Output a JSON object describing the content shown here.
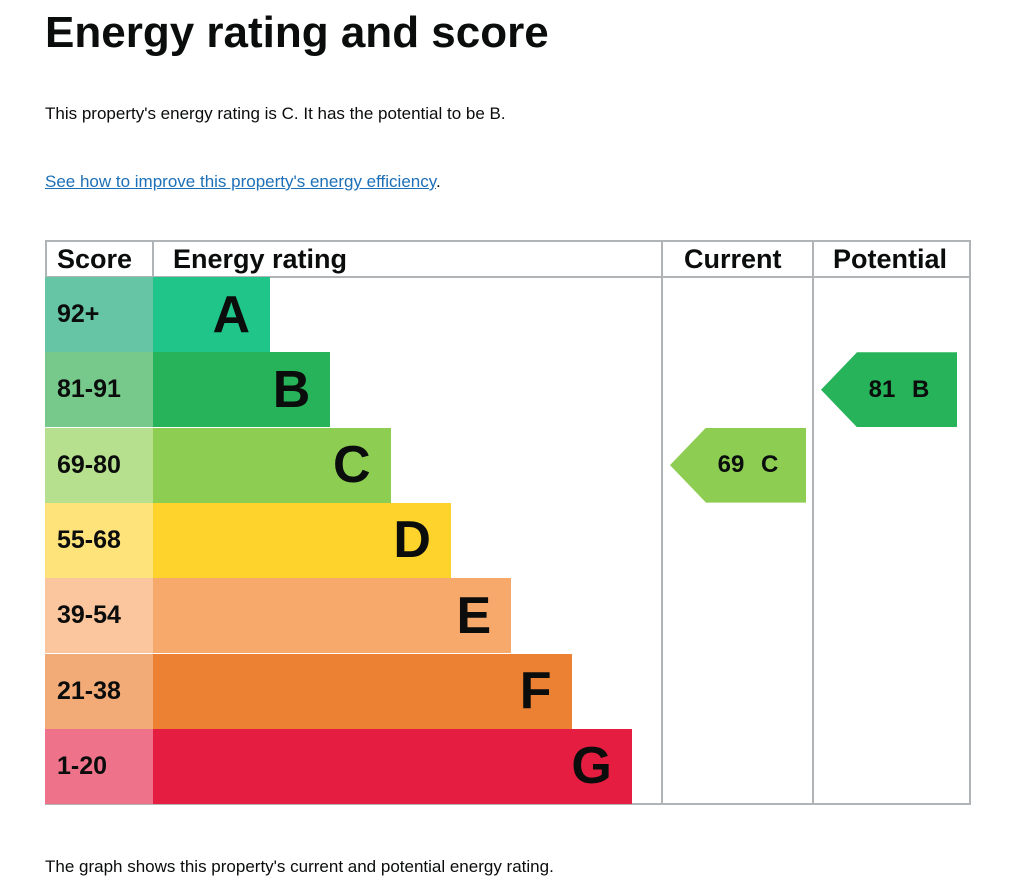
{
  "title": "Energy rating and score",
  "summary": "This property's energy rating is C. It has the potential to be B.",
  "link": {
    "text": "See how to improve this property's energy efficiency",
    "suffix": "."
  },
  "footer": "The graph shows this property's current and potential energy rating.",
  "table": {
    "headers": {
      "score": "Score",
      "rating": "Energy rating",
      "current": "Current",
      "potential": "Potential"
    },
    "bands": [
      {
        "score": "92+",
        "letter": "A",
        "color": "#1fc589",
        "score_color": "#66c5a5"
      },
      {
        "score": "81-91",
        "letter": "B",
        "color": "#27b35a",
        "score_color": "#76c98b"
      },
      {
        "score": "69-80",
        "letter": "C",
        "color": "#8ccd52",
        "score_color": "#b7e08e"
      },
      {
        "score": "55-68",
        "letter": "D",
        "color": "#fed32c",
        "score_color": "#fee27a"
      },
      {
        "score": "39-54",
        "letter": "E",
        "color": "#f7a86b",
        "score_color": "#fbc69d"
      },
      {
        "score": "21-38",
        "letter": "F",
        "color": "#ed8133",
        "score_color": "#f2ab77"
      },
      {
        "score": "1-20",
        "letter": "G",
        "color": "#e51d41",
        "score_color": "#ee7289"
      }
    ],
    "current": {
      "label": "69 C",
      "score": 69,
      "band": "C",
      "color": "#8ccd52"
    },
    "potential": {
      "label": "81 B",
      "score": 81,
      "band": "B",
      "color": "#27b35a"
    }
  }
}
